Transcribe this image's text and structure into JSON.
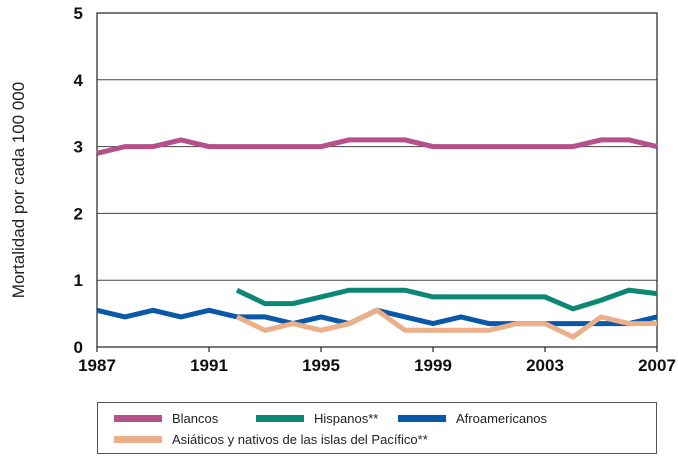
{
  "chart_data": {
    "type": "line",
    "ylabel": "Mortalidad por cada 100 000",
    "ylim": [
      0,
      5
    ],
    "yticks": [
      "0",
      "1",
      "2",
      "3",
      "4",
      "5"
    ],
    "xlim": [
      1987,
      2007
    ],
    "xticks": [
      "1987",
      "1991",
      "1995",
      "1999",
      "2003",
      "2007"
    ],
    "grid": "horizontal",
    "legend_position": "bottom",
    "series": [
      {
        "name": "Blancos",
        "color": "#b5508a",
        "x": [
          1987,
          1988,
          1989,
          1990,
          1991,
          1992,
          1993,
          1994,
          1995,
          1996,
          1997,
          1998,
          1999,
          2000,
          2001,
          2002,
          2003,
          2004,
          2005,
          2006,
          2007
        ],
        "values": [
          2.9,
          3.0,
          3.0,
          3.1,
          3.0,
          3.0,
          3.0,
          3.0,
          3.0,
          3.1,
          3.1,
          3.1,
          3.0,
          3.0,
          3.0,
          3.0,
          3.0,
          3.0,
          3.1,
          3.1,
          3.0
        ]
      },
      {
        "name": "Hispanos**",
        "color": "#0b8774",
        "x": [
          1992,
          1993,
          1994,
          1995,
          1996,
          1997,
          1998,
          1999,
          2000,
          2001,
          2002,
          2003,
          2004,
          2005,
          2006,
          2007
        ],
        "values": [
          0.85,
          0.65,
          0.65,
          0.75,
          0.85,
          0.85,
          0.85,
          0.75,
          0.75,
          0.75,
          0.75,
          0.75,
          0.57,
          0.7,
          0.85,
          0.8
        ]
      },
      {
        "name": "Afroamericanos",
        "color": "#0a58a8",
        "x": [
          1987,
          1988,
          1989,
          1990,
          1991,
          1992,
          1993,
          1994,
          1995,
          1996,
          1997,
          1998,
          1999,
          2000,
          2001,
          2002,
          2003,
          2004,
          2005,
          2006,
          2007
        ],
        "values": [
          0.55,
          0.45,
          0.55,
          0.45,
          0.55,
          0.45,
          0.45,
          0.35,
          0.45,
          0.35,
          0.55,
          0.45,
          0.35,
          0.45,
          0.35,
          0.35,
          0.35,
          0.35,
          0.35,
          0.35,
          0.45
        ]
      },
      {
        "name": "Asiáticos y nativos de las islas del Pacífico**",
        "color": "#ecaf8a",
        "x": [
          1992,
          1993,
          1994,
          1995,
          1996,
          1997,
          1998,
          1999,
          2000,
          2001,
          2002,
          2003,
          2004,
          2005,
          2006,
          2007
        ],
        "values": [
          0.45,
          0.25,
          0.35,
          0.25,
          0.35,
          0.55,
          0.25,
          0.25,
          0.25,
          0.25,
          0.35,
          0.35,
          0.15,
          0.45,
          0.35,
          0.35
        ]
      }
    ]
  }
}
